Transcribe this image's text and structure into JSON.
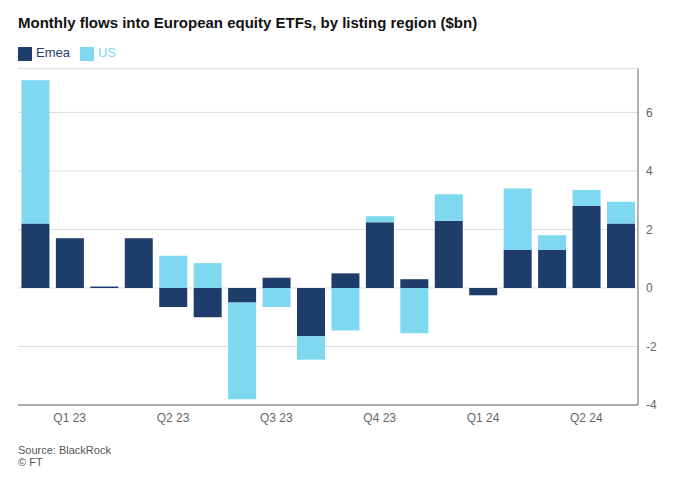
{
  "chart_data": {
    "type": "bar",
    "title": "Monthly flows into European equity ETFs, by listing region ($bn)",
    "categories": [
      null,
      "Q1 23",
      null,
      null,
      "Q2 23",
      null,
      null,
      "Q3 23",
      null,
      null,
      "Q4 23",
      null,
      null,
      "Q1 24",
      null,
      null,
      "Q2 24",
      null
    ],
    "series": [
      {
        "name": "Emea",
        "color": "#1f3d6b",
        "values": [
          2.2,
          1.7,
          0.05,
          1.7,
          -0.65,
          -1.0,
          -0.5,
          0.35,
          -1.65,
          0.5,
          2.25,
          0.3,
          2.3,
          -0.25,
          1.3,
          1.3,
          2.8,
          2.2
        ]
      },
      {
        "name": "US",
        "color": "#7dd8f0",
        "values": [
          4.9,
          0.0,
          0.0,
          0.0,
          1.1,
          0.85,
          -3.3,
          -0.65,
          -0.8,
          -1.45,
          0.2,
          -1.55,
          0.9,
          0.0,
          2.1,
          0.5,
          0.55,
          0.75
        ]
      }
    ],
    "stacked": true,
    "ylim": [
      -4.0,
      7.5
    ],
    "yticks": [
      -4,
      -2,
      0,
      2,
      4,
      6
    ],
    "grid": true,
    "legend": "top-left",
    "annotations": [
      "Source: BlackRock",
      "© FT"
    ]
  }
}
